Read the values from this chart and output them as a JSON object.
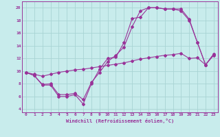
{
  "xlabel": "Windchill (Refroidissement éolien,°C)",
  "xlim": [
    -0.5,
    23.5
  ],
  "ylim": [
    3.5,
    21
  ],
  "yticks": [
    4,
    6,
    8,
    10,
    12,
    14,
    16,
    18,
    20
  ],
  "xticks": [
    0,
    1,
    2,
    3,
    4,
    5,
    6,
    7,
    8,
    9,
    10,
    11,
    12,
    13,
    14,
    15,
    16,
    17,
    18,
    19,
    20,
    21,
    22,
    23
  ],
  "bg_color": "#c8ecec",
  "grid_color": "#a8d4d4",
  "line_color": "#993399",
  "line1_x": [
    0,
    1,
    2,
    3,
    4,
    5,
    6,
    7,
    8,
    9,
    10,
    11,
    12,
    13,
    14,
    15,
    16,
    17,
    18,
    19,
    20,
    21,
    22,
    23
  ],
  "line1_y": [
    9.8,
    9.3,
    7.8,
    7.8,
    6.0,
    6.0,
    6.3,
    4.8,
    8.0,
    10.3,
    12.0,
    12.2,
    14.5,
    18.3,
    18.5,
    20.0,
    20.0,
    19.8,
    19.8,
    19.8,
    18.2,
    14.5,
    11.0,
    12.7
  ],
  "line2_x": [
    0,
    1,
    2,
    3,
    4,
    5,
    6,
    7,
    8,
    9,
    10,
    11,
    12,
    13,
    14,
    15,
    16,
    17,
    18,
    19,
    20,
    21,
    22,
    23
  ],
  "line2_y": [
    9.8,
    9.3,
    7.9,
    8.0,
    6.3,
    6.3,
    6.5,
    5.5,
    8.2,
    9.8,
    11.5,
    12.5,
    13.8,
    17.0,
    19.5,
    20.0,
    20.0,
    19.8,
    19.8,
    19.5,
    18.0,
    14.5,
    11.0,
    12.7
  ],
  "line3_x": [
    0,
    1,
    2,
    3,
    4,
    5,
    6,
    7,
    8,
    9,
    10,
    11,
    12,
    13,
    14,
    15,
    16,
    17,
    18,
    19,
    20,
    21,
    22,
    23
  ],
  "line3_y": [
    9.8,
    9.5,
    9.2,
    9.5,
    9.8,
    10.0,
    10.2,
    10.3,
    10.5,
    10.7,
    10.9,
    11.1,
    11.3,
    11.6,
    11.9,
    12.1,
    12.3,
    12.5,
    12.6,
    12.8,
    12.0,
    12.1,
    11.0,
    12.5
  ]
}
